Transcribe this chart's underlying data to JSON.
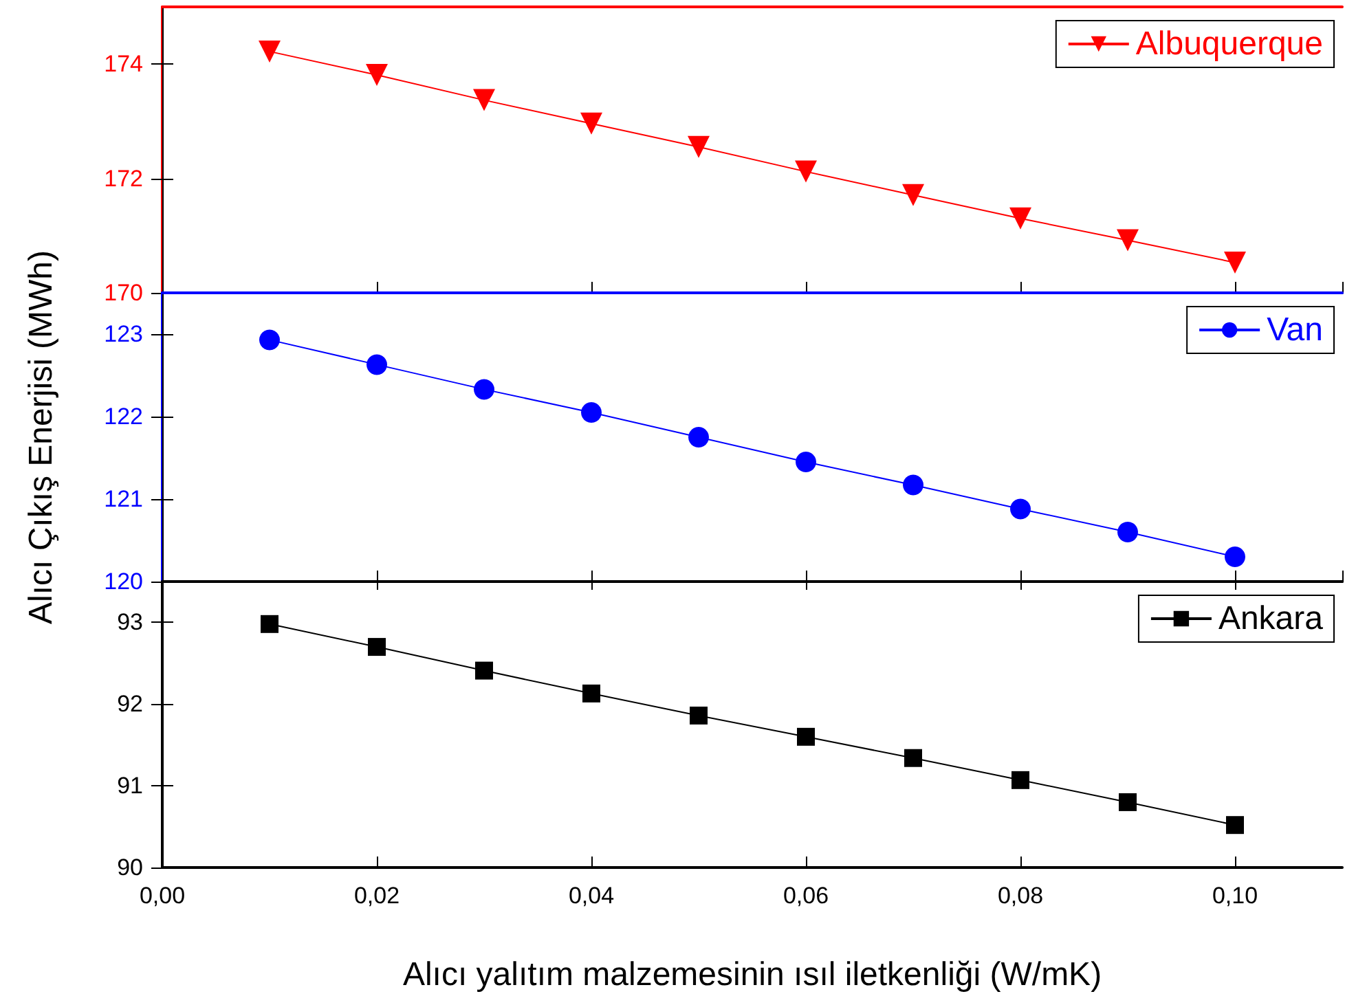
{
  "chart_data": [
    {
      "type": "line",
      "x": [
        0.01,
        0.02,
        0.03,
        0.04,
        0.05,
        0.06,
        0.07,
        0.08,
        0.09,
        0.1
      ],
      "series": [
        {
          "name": "Albuquerque",
          "color": "#ff0000",
          "values": [
            174.22,
            173.81,
            173.37,
            172.96,
            172.55,
            172.12,
            171.71,
            171.3,
            170.92,
            170.53
          ]
        }
      ],
      "xlim": [
        0,
        0.11
      ],
      "ylim": [
        170,
        175
      ],
      "yticks": [
        170,
        172,
        174
      ],
      "marker": "triangle",
      "line_style": "solid",
      "legend": "top right",
      "grid": false,
      "tick_labels": "y"
    },
    {
      "type": "line",
      "x": [
        0.01,
        0.02,
        0.03,
        0.04,
        0.05,
        0.06,
        0.07,
        0.08,
        0.09,
        0.1
      ],
      "series": [
        {
          "name": "Van",
          "color": "#0000ff",
          "values": [
            122.93,
            122.63,
            122.33,
            122.05,
            121.75,
            121.45,
            121.17,
            120.88,
            120.6,
            120.3
          ]
        }
      ],
      "ylabel": "Alıcı Çıkış Enerjisi (MWh)",
      "xlim": [
        0,
        0.11
      ],
      "ylim": [
        120,
        123.5
      ],
      "yticks": [
        120,
        121,
        122,
        123
      ],
      "marker": "circle",
      "line_style": "solid",
      "legend": "top right",
      "grid": false,
      "tick_labels": "y"
    },
    {
      "type": "line",
      "x": [
        0.01,
        0.02,
        0.03,
        0.04,
        0.05,
        0.06,
        0.07,
        0.08,
        0.09,
        0.1
      ],
      "series": [
        {
          "name": "Ankara",
          "color": "#000000",
          "values": [
            92.98,
            92.7,
            92.41,
            92.13,
            91.86,
            91.6,
            91.34,
            91.07,
            90.8,
            90.52
          ]
        }
      ],
      "xlabel": "Alıcı yalıtım malzemesinin ısıl iletkenliği (W/mK)",
      "xlim": [
        0,
        0.11
      ],
      "xticks": [
        {
          "value": 0,
          "label": "0,00"
        },
        {
          "value": 0.02,
          "label": "0,02"
        },
        {
          "value": 0.04,
          "label": "0,04"
        },
        {
          "value": 0.06,
          "label": "0,06"
        },
        {
          "value": 0.08,
          "label": "0,08"
        },
        {
          "value": 0.1,
          "label": "0,10"
        }
      ],
      "ylim": [
        90,
        93.5
      ],
      "yticks": [
        90,
        91,
        92,
        93
      ],
      "marker": "square",
      "line_style": "solid",
      "legend": "top right",
      "grid": false
    }
  ]
}
